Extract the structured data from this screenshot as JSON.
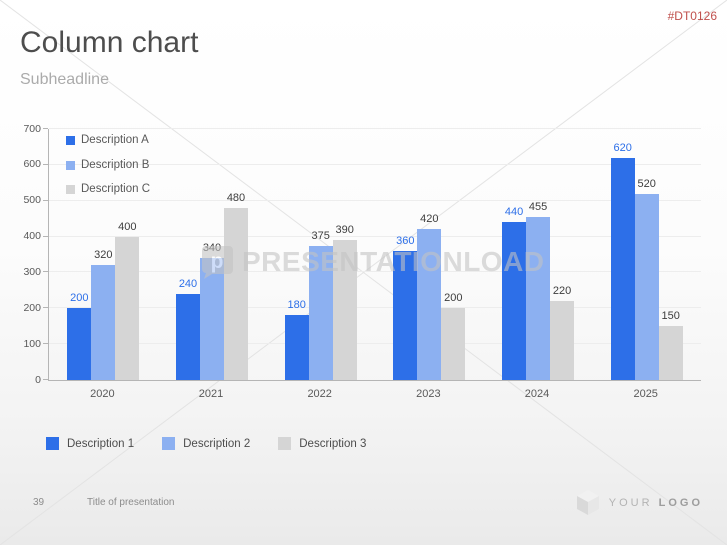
{
  "meta": {
    "code": "#DT0126"
  },
  "header": {
    "title": "Column chart",
    "subtitle": "Subheadline"
  },
  "chart_data": {
    "type": "bar",
    "title": "Column chart",
    "categories": [
      "2020",
      "2021",
      "2022",
      "2023",
      "2024",
      "2025"
    ],
    "series": [
      {
        "name": "Description A",
        "color": "#2d6fe8",
        "label_color": "#2d6fe8",
        "values": [
          200,
          240,
          180,
          360,
          440,
          620
        ]
      },
      {
        "name": "Description B",
        "color": "#8cb0f1",
        "label_color": "#3d3d3d",
        "values": [
          320,
          340,
          375,
          420,
          455,
          520
        ]
      },
      {
        "name": "Description C",
        "color": "#d5d5d5",
        "label_color": "#3d3d3d",
        "values": [
          400,
          480,
          390,
          200,
          220,
          150
        ]
      }
    ],
    "ylim": [
      0,
      700
    ],
    "yticks": [
      0,
      100,
      200,
      300,
      400,
      500,
      600,
      700
    ],
    "grid": true,
    "legend_position": "top-left-inside",
    "data_labels": true
  },
  "bottom_legend": [
    {
      "label": "Description 1",
      "color": "#2d6fe8"
    },
    {
      "label": "Description 2",
      "color": "#8cb0f1"
    },
    {
      "label": "Description 3",
      "color": "#d5d5d5"
    }
  ],
  "watermark": {
    "text": "PRESENTATIONLOAD"
  },
  "footer": {
    "page_number": "39",
    "presentation_title": "Title of presentation",
    "logo_word_light": "YOUR",
    "logo_word_bold": "LOGO"
  },
  "colors": {
    "axis": "#b5b5b5",
    "gridline": "#ededed",
    "tick_label": "#595959",
    "code_red": "#c0504d"
  }
}
